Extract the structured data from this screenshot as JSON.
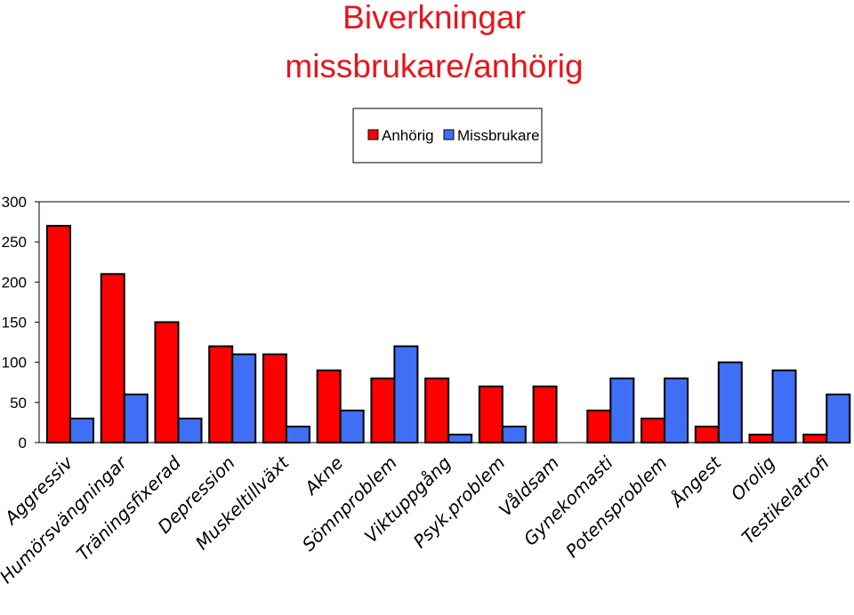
{
  "chart_data": {
    "type": "bar",
    "title": [
      "Biverkningar",
      "missbrukare/anhörig"
    ],
    "xlabel": "",
    "ylabel": "",
    "ylim": [
      0,
      300
    ],
    "yticks": [
      0,
      50,
      100,
      150,
      200,
      250,
      300
    ],
    "grid": false,
    "legend_position": "top-center",
    "categories": [
      "Aggressiv",
      "Humörsvängningar",
      "Träningsfixerad",
      "Depression",
      "Muskeltillväxt",
      "Akne",
      "Sömnproblem",
      "Viktuppgång",
      "Psyk.problem",
      "Våldsam",
      "Gynekomasti",
      "Potensproblem",
      "Ångest",
      "Orolig",
      "Testikelatrofi"
    ],
    "series": [
      {
        "name": "Anhörig",
        "color": "#ff0000",
        "values": [
          270,
          210,
          150,
          120,
          110,
          90,
          80,
          80,
          70,
          70,
          40,
          30,
          20,
          10,
          10
        ]
      },
      {
        "name": "Missbrukare",
        "color": "#3f6ff5",
        "values": [
          30,
          60,
          30,
          110,
          20,
          40,
          120,
          10,
          20,
          0,
          80,
          80,
          100,
          90,
          60
        ]
      }
    ]
  }
}
